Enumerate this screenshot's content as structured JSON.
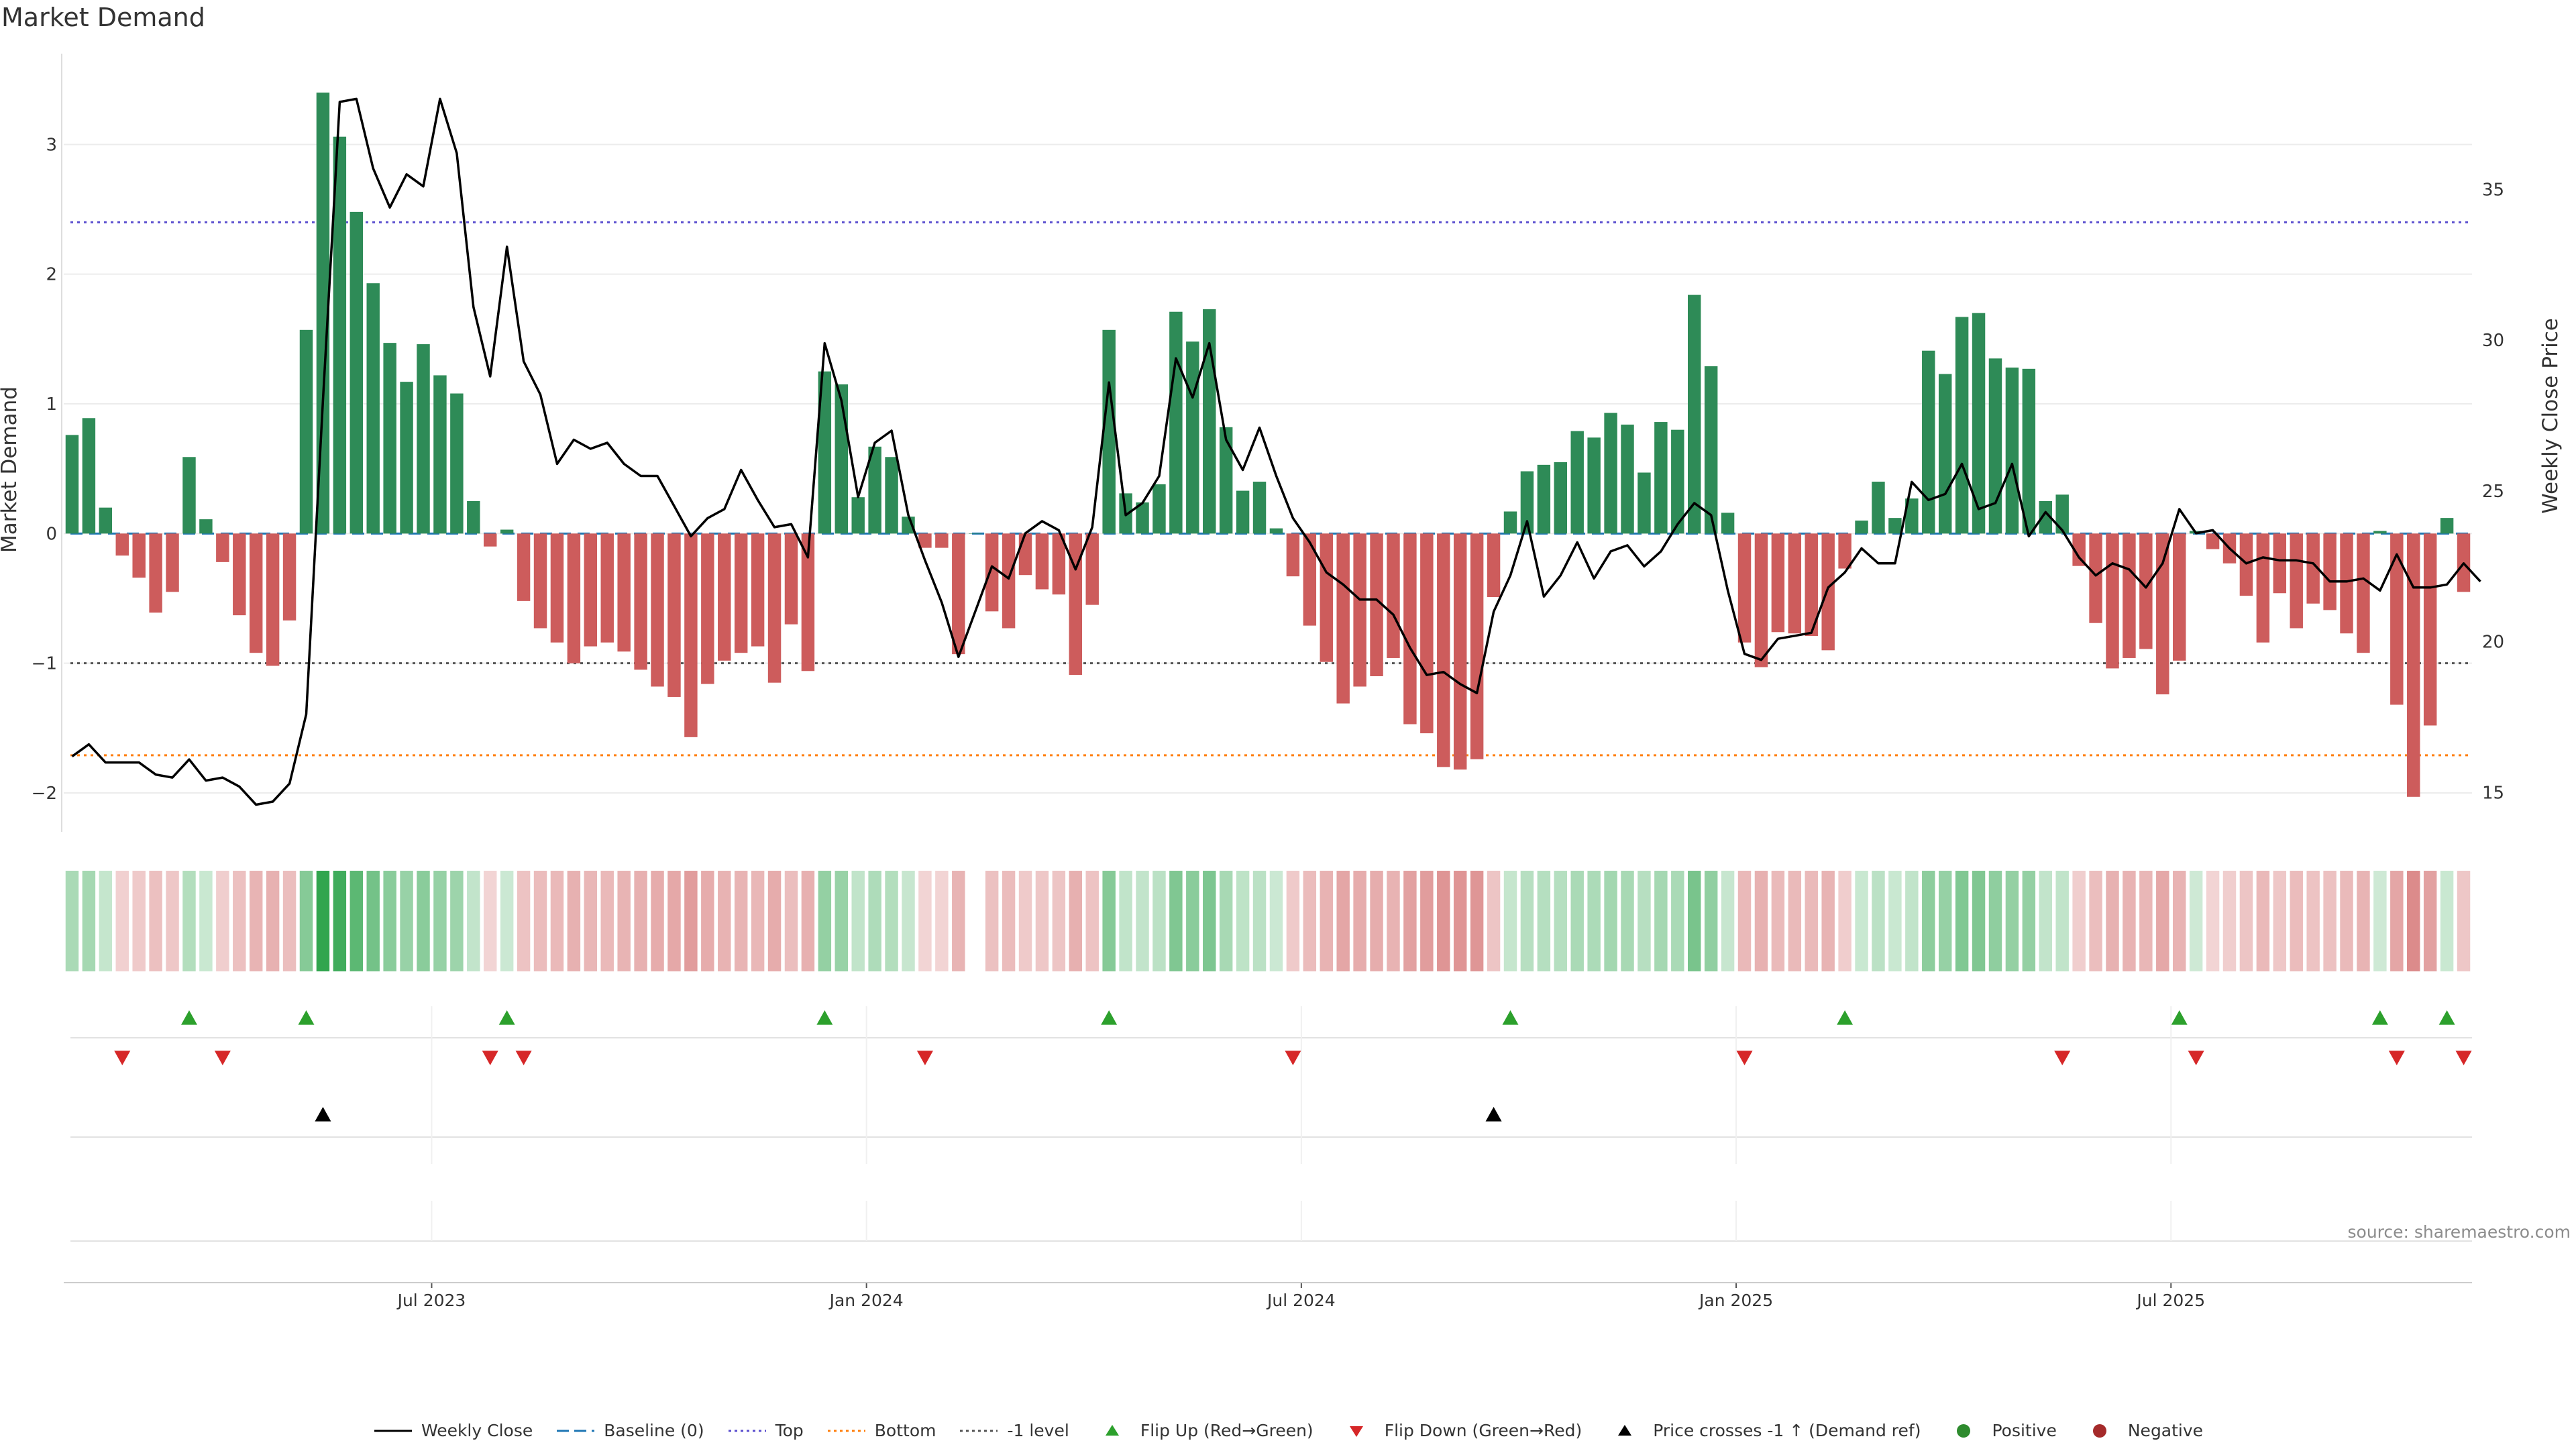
{
  "title": "Market Demand",
  "source": "source: sharemaestro.com",
  "colors": {
    "positive": "#2e8b57",
    "negative": "#cd5c5c",
    "price_line": "#000000",
    "top_line": "#5b4fcf",
    "bottom_line": "#ff7f0e",
    "minus1_line": "#555555",
    "baseline": "#1f77b4",
    "flip_up": "#2ca02c",
    "flip_down": "#d62728",
    "cross_marker": "#000000",
    "heat_positive": "#1f9d3f",
    "heat_negative": "#c84a4a"
  },
  "legend": [
    {
      "key": "weekly_close",
      "label": "Weekly Close"
    },
    {
      "key": "baseline",
      "label": "Baseline (0)"
    },
    {
      "key": "top",
      "label": "Top"
    },
    {
      "key": "bottom",
      "label": "Bottom"
    },
    {
      "key": "minus1",
      "label": "-1 level"
    },
    {
      "key": "flip_up",
      "label": "Flip Up (Red→Green)"
    },
    {
      "key": "flip_down",
      "label": "Flip Down (Green→Red)"
    },
    {
      "key": "cross",
      "label": "Price crosses -1 ↑ (Demand ref)"
    },
    {
      "key": "positive",
      "label": "Positive"
    },
    {
      "key": "negative",
      "label": "Negative"
    }
  ],
  "chart_data": {
    "type": "bar",
    "title": "Market Demand",
    "xlabel": "",
    "ylabel": "Market Demand",
    "y2label": "Weekly Close Price",
    "ylim": [
      -2.3,
      3.7
    ],
    "y2lim": [
      13.7,
      39.5
    ],
    "yticks": [
      -2,
      -1,
      0,
      1,
      2,
      3
    ],
    "y2ticks": [
      15,
      20,
      25,
      30,
      35
    ],
    "x_tick_labels": [
      "Jul 2023",
      "Jan 2024",
      "Jul 2024",
      "Jan 2025",
      "Jul 2025"
    ],
    "x_tick_weeks": [
      22,
      48,
      74,
      100,
      126
    ],
    "reference_lines": {
      "top": 2.4,
      "bottom": -1.71,
      "minus1": -1,
      "baseline": 0
    },
    "demand": [
      0.76,
      0.89,
      0.2,
      -0.17,
      -0.34,
      -0.61,
      -0.45,
      0.59,
      0.11,
      -0.22,
      -0.63,
      -0.92,
      -1.02,
      -0.67,
      1.57,
      3.4,
      3.06,
      2.48,
      1.93,
      1.47,
      1.17,
      1.46,
      1.22,
      1.08,
      0.25,
      -0.1,
      0.03,
      -0.52,
      -0.73,
      -0.84,
      -1.0,
      -0.87,
      -0.84,
      -0.91,
      -1.05,
      -1.18,
      -1.26,
      -1.57,
      -1.16,
      -0.98,
      -0.92,
      -0.87,
      -1.15,
      -0.7,
      -1.06,
      1.25,
      1.15,
      0.28,
      0.67,
      0.59,
      0.13,
      -0.11,
      -0.11,
      -0.93,
      0.0,
      -0.6,
      -0.73,
      -0.32,
      -0.43,
      -0.47,
      -1.09,
      -0.55,
      1.57,
      0.31,
      0.24,
      0.38,
      1.71,
      1.48,
      1.73,
      0.82,
      0.33,
      0.4,
      0.04,
      -0.33,
      -0.71,
      -0.99,
      -1.31,
      -1.18,
      -1.1,
      -0.96,
      -1.47,
      -1.54,
      -1.8,
      -1.82,
      -1.74,
      -0.49,
      0.17,
      0.48,
      0.53,
      0.55,
      0.79,
      0.74,
      0.93,
      0.84,
      0.47,
      0.86,
      0.8,
      1.84,
      1.29,
      0.16,
      -0.84,
      -1.03,
      -0.76,
      -0.77,
      -0.79,
      -0.9,
      -0.27,
      0.1,
      0.4,
      0.12,
      0.27,
      1.41,
      1.23,
      1.67,
      1.7,
      1.35,
      1.28,
      1.27,
      0.25,
      0.3,
      -0.25,
      -0.69,
      -1.04,
      -0.96,
      -0.89,
      -1.24,
      -0.98,
      0.02,
      -0.12,
      -0.23,
      -0.48,
      -0.84,
      -0.46,
      -0.73,
      -0.54,
      -0.59,
      -0.77,
      -0.92,
      0.02,
      -1.32,
      -2.03,
      -1.48,
      0.12,
      -0.45
    ],
    "price": [
      16.2,
      16.6,
      16.0,
      16.0,
      16.0,
      15.6,
      15.5,
      16.1,
      15.4,
      15.5,
      15.2,
      14.6,
      14.7,
      15.3,
      17.6,
      28.0,
      37.9,
      38.0,
      35.7,
      34.4,
      35.5,
      35.1,
      38.0,
      36.2,
      31.1,
      28.8,
      33.1,
      29.3,
      28.2,
      25.9,
      26.7,
      26.4,
      26.6,
      25.9,
      25.5,
      25.5,
      24.5,
      23.5,
      24.1,
      24.4,
      25.7,
      24.7,
      23.8,
      23.9,
      22.8,
      29.9,
      28.0,
      24.8,
      26.6,
      27.0,
      24.2,
      22.7,
      21.3,
      19.5,
      21.0,
      22.5,
      22.1,
      23.6,
      24.0,
      23.7,
      22.4,
      23.8,
      28.6,
      24.2,
      24.6,
      25.5,
      29.4,
      28.1,
      29.9,
      26.7,
      25.7,
      27.1,
      25.5,
      24.1,
      23.3,
      22.3,
      21.9,
      21.4,
      21.4,
      20.9,
      19.8,
      18.9,
      19.0,
      18.6,
      18.3,
      21.0,
      22.2,
      24.0,
      21.5,
      22.2,
      23.3,
      22.1,
      23.0,
      23.2,
      22.5,
      23.0,
      23.9,
      24.6,
      24.2,
      21.7,
      19.6,
      19.4,
      20.1,
      20.2,
      20.3,
      21.8,
      22.3,
      23.1,
      22.6,
      22.6,
      25.3,
      24.7,
      24.9,
      25.9,
      24.4,
      24.6,
      25.9,
      23.5,
      24.3,
      23.7,
      22.8,
      22.2,
      22.6,
      22.4,
      21.8,
      22.6,
      24.4,
      23.6,
      23.7,
      23.1,
      22.6,
      22.8,
      22.7,
      22.7,
      22.6,
      22.0,
      22.0,
      22.1,
      21.7,
      22.9,
      21.8,
      21.8,
      21.9,
      22.6,
      22.0
    ],
    "flip_up_weeks": [
      7,
      14,
      26,
      45,
      62,
      86,
      106,
      126,
      138,
      142
    ],
    "flip_down_weeks": [
      3,
      9,
      25,
      27,
      51,
      73,
      100,
      119,
      127,
      139,
      143
    ],
    "price_cross_weeks": [
      15,
      85
    ],
    "heat_gap_weeks": [
      54
    ]
  }
}
